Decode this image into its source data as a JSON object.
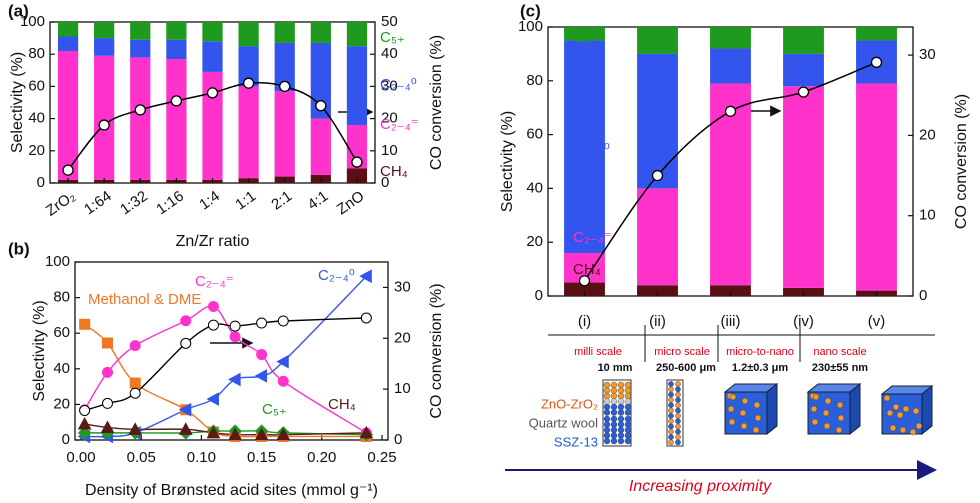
{
  "chart_data": [
    {
      "type": "bar",
      "panel_label": "(a)",
      "xlabel": "Zn/Zr ratio",
      "ylabel": "Selectivity (%)",
      "y2label": "CO conversion (%)",
      "categories": [
        "ZrO₂",
        "1:64",
        "1:32",
        "1:16",
        "1:4",
        "1:1",
        "2:1",
        "4:1",
        "ZnO"
      ],
      "ylim": [
        0,
        100
      ],
      "yticks": [
        0,
        20,
        40,
        60,
        80,
        100
      ],
      "y2lim": [
        0,
        50
      ],
      "y2ticks": [
        0,
        10,
        20,
        30,
        40,
        50
      ],
      "series": [
        {
          "name": "CH₄",
          "color": "#5a0f14",
          "values": [
            2,
            2,
            2,
            2,
            2,
            3,
            4,
            5,
            9
          ]
        },
        {
          "name": "C₂₋₄⁼",
          "color": "#ff33cc",
          "values": [
            80,
            77,
            76,
            75,
            67,
            57,
            53,
            35,
            27
          ]
        },
        {
          "name": "C₂₋₄⁰",
          "color": "#3355ee",
          "values": [
            9,
            11,
            11,
            12,
            19,
            25,
            30,
            47,
            49
          ]
        },
        {
          "name": "C₅₊",
          "color": "#1e9a1e",
          "values": [
            9,
            10,
            11,
            11,
            12,
            15,
            13,
            13,
            15
          ]
        },
        {
          "axis": "y2",
          "color": "#000000",
          "values": [
            4,
            18,
            22.7,
            25.5,
            28,
            31,
            30,
            24,
            6.5
          ]
        }
      ]
    },
    {
      "type": "scatter",
      "panel_label": "(b)",
      "xlabel": "Density of Brønsted acid sites (mmol g⁻¹)",
      "ylabel": "Selectivity (%)",
      "y2label": "CO conversion (%)",
      "x": [
        0.003,
        0.022,
        0.045,
        0.087,
        0.11,
        0.128,
        0.15,
        0.168,
        0.237
      ],
      "xlim": [
        -0.005,
        0.255
      ],
      "xticks": [
        {
          "value": 0,
          "label": "0.00"
        },
        {
          "value": 0.05,
          "label": "0.05"
        },
        {
          "value": 0.1,
          "label": "0.10"
        },
        {
          "value": 0.15,
          "label": "0.15"
        },
        {
          "value": 0.2,
          "label": "0.20"
        },
        {
          "value": 0.25,
          "label": "0.25"
        }
      ],
      "ylim": [
        0,
        100
      ],
      "yticks": [
        0,
        20,
        40,
        60,
        80,
        100
      ],
      "y2lim": [
        0,
        35
      ],
      "y2ticks": [
        0,
        10,
        20,
        30
      ],
      "series": [
        {
          "name": "Methanol & DME",
          "color": "#f07820",
          "marker": "square",
          "values": [
            65,
            54.5,
            32,
            17,
            4.5,
            2,
            2,
            2,
            2
          ]
        },
        {
          "name": "C₂₋₄⁼",
          "color": "#ff33cc",
          "marker": "circle",
          "values": [
            17,
            38,
            53,
            67,
            75,
            58,
            48,
            33,
            4
          ]
        },
        {
          "name": "C₂₋₄⁰",
          "color": "#3355ee",
          "marker": "triangle-left",
          "values": [
            2,
            2,
            4,
            17,
            23,
            34,
            36,
            44,
            92
          ]
        },
        {
          "name": "C₅₊",
          "color": "#1e9a1e",
          "marker": "diamond",
          "values": [
            4,
            4,
            4,
            4,
            5,
            5,
            5,
            4,
            3
          ]
        },
        {
          "name": "CH₄",
          "color": "#5a1a1a",
          "marker": "triangle-up",
          "values": [
            9,
            7,
            6,
            6,
            4,
            3,
            3,
            3,
            4
          ]
        },
        {
          "axis": "y2",
          "color": "#000000",
          "marker": "circle-open",
          "values": [
            5.8,
            7.2,
            9.2,
            19,
            22.6,
            22.4,
            23,
            23.4,
            24
          ]
        }
      ]
    },
    {
      "type": "bar",
      "panel_label": "(c)",
      "ylabel": "Selectivity (%)",
      "y2label": "CO conversion (%)",
      "categories": [
        "(i)",
        "(ii)",
        "(iii)",
        "(iv)",
        "(v)"
      ],
      "ylim": [
        0,
        100
      ],
      "yticks": [
        0,
        20,
        40,
        60,
        80,
        100
      ],
      "y2lim": [
        0,
        33.5
      ],
      "y2ticks": [
        0,
        10,
        20,
        30
      ],
      "series": [
        {
          "name": "CH₄",
          "color": "#5a0f14",
          "values": [
            5,
            4,
            4,
            3,
            2
          ]
        },
        {
          "name": "C₂₋₄⁼",
          "color": "#ff33cc",
          "values": [
            11,
            36,
            75,
            75,
            77
          ]
        },
        {
          "name": "C₂₋₄⁰",
          "color": "#3355ee",
          "values": [
            79,
            50,
            13,
            12,
            16
          ]
        },
        {
          "name": "C₅₊",
          "color": "#1e9a1e",
          "values": [
            5,
            10,
            8,
            10,
            5
          ]
        },
        {
          "axis": "y2",
          "color": "#000000",
          "values": [
            1.9,
            15,
            23,
            25.4,
            29.1
          ]
        }
      ]
    }
  ],
  "diagram": {
    "scales": [
      "milli scale",
      "micro scale",
      "micro-to-nano",
      "nano scale"
    ],
    "sizes": [
      "10 mm",
      "250-600 μm",
      "1.2±0.3 μm",
      "230±55 nm"
    ],
    "materials": [
      "ZnO-ZrO₂",
      "Quartz wool",
      "SSZ-13"
    ],
    "caption": "Increasing proximity"
  }
}
